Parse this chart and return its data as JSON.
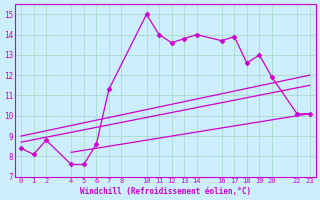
{
  "xlabel": "Windchill (Refroidissement éolien,°C)",
  "bg_color": "#cceeff",
  "grid_color": "#b0ddd0",
  "line_color": "#cc00cc",
  "x_main": [
    0,
    1,
    2,
    4,
    5,
    6,
    7,
    10,
    11,
    12,
    13,
    14,
    16,
    17,
    18,
    19,
    20,
    22,
    23
  ],
  "y_main": [
    8.4,
    8.1,
    8.8,
    7.6,
    7.6,
    8.6,
    11.3,
    15.0,
    14.0,
    13.6,
    13.8,
    14.0,
    13.7,
    13.9,
    12.6,
    13.0,
    11.9,
    10.1,
    10.1
  ],
  "trend1_x": [
    0,
    23
  ],
  "trend1_y": [
    9.0,
    12.0
  ],
  "trend2_x": [
    0,
    23
  ],
  "trend2_y": [
    8.7,
    11.5
  ],
  "trend3_x": [
    4,
    23
  ],
  "trend3_y": [
    8.2,
    10.1
  ],
  "ylim": [
    7,
    15.5
  ],
  "xlim": [
    -0.5,
    23.5
  ],
  "yticks": [
    7,
    8,
    9,
    10,
    11,
    12,
    13,
    14,
    15
  ],
  "xticks": [
    0,
    1,
    2,
    4,
    5,
    6,
    7,
    8,
    10,
    11,
    12,
    13,
    14,
    16,
    17,
    18,
    19,
    20,
    22,
    23
  ]
}
